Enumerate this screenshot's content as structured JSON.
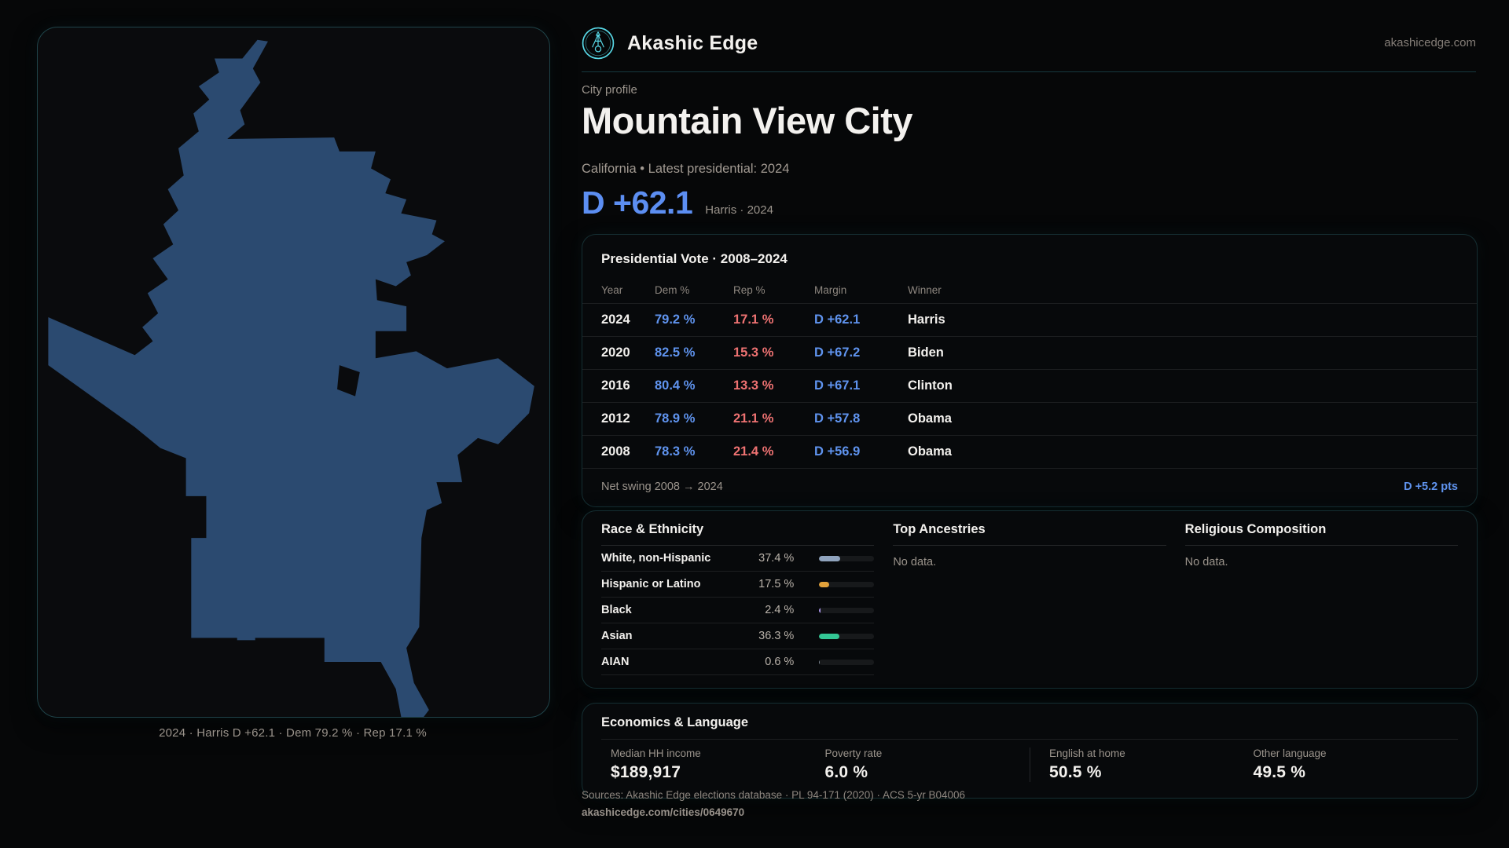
{
  "brand": {
    "name": "Akashic Edge",
    "domain": "akashicedge.com",
    "logo_icon": "circular-sigil-icon",
    "accent_teal": "#58d8e6"
  },
  "hero": {
    "eyebrow": "City profile",
    "title": "Mountain View City",
    "subtitle": "California • Latest presidential: 2024",
    "margin_value": "D +62.1",
    "margin_note": "Harris · 2024",
    "margin_color": "#5c8ef2"
  },
  "map": {
    "caption": "2024 · Harris D +62.1 · Dem 79.2 % · Rep 17.1 %",
    "shape_fill": "#2b4a70"
  },
  "elections": {
    "title": "Presidential Vote · 2008–2024",
    "columns": [
      "Year",
      "Dem %",
      "Rep %",
      "Margin",
      "Winner"
    ],
    "rows": [
      {
        "year": "2024",
        "dem": "79.2 %",
        "rep": "17.1 %",
        "margin": "D +62.1",
        "winner": "Harris"
      },
      {
        "year": "2020",
        "dem": "82.5 %",
        "rep": "15.3 %",
        "margin": "D +67.2",
        "winner": "Biden"
      },
      {
        "year": "2016",
        "dem": "80.4 %",
        "rep": "13.3 %",
        "margin": "D +67.1",
        "winner": "Clinton"
      },
      {
        "year": "2012",
        "dem": "78.9 %",
        "rep": "21.1 %",
        "margin": "D +57.8",
        "winner": "Obama"
      },
      {
        "year": "2008",
        "dem": "78.3 %",
        "rep": "21.4 %",
        "margin": "D +56.9",
        "winner": "Obama"
      }
    ],
    "net_swing_label": "Net swing 2008 → 2024",
    "net_swing_value": "D +5.2 pts",
    "dem_color": "#5f93ee",
    "rep_color": "#ee7272"
  },
  "race": {
    "title": "Race & Ethnicity",
    "rows": [
      {
        "label": "White, non-Hispanic",
        "value": "37.4 %",
        "pct": 37.4,
        "color": "#8fa3bd"
      },
      {
        "label": "Hispanic or Latino",
        "value": "17.5 %",
        "pct": 17.5,
        "color": "#e2a23b"
      },
      {
        "label": "Black",
        "value": "2.4 %",
        "pct": 2.4,
        "color": "#a995e8"
      },
      {
        "label": "Asian",
        "value": "36.3 %",
        "pct": 36.3,
        "color": "#33c795"
      },
      {
        "label": "AIAN",
        "value": "0.6 %",
        "pct": 0.6,
        "color": "#7c8792"
      }
    ]
  },
  "ancestries": {
    "title": "Top Ancestries",
    "empty": "No data."
  },
  "religion": {
    "title": "Religious Composition",
    "empty": "No data."
  },
  "economics": {
    "title": "Economics & Language",
    "stats": [
      {
        "label": "Median HH income",
        "value": "$189,917"
      },
      {
        "label": "Poverty rate",
        "value": "6.0 %"
      },
      {
        "label": "English at home",
        "value": "50.5 %"
      },
      {
        "label": "Other language",
        "value": "49.5 %"
      }
    ]
  },
  "footer": {
    "sources": "Sources: Akashic Edge elections database · PL 94-171 (2020) · ACS 5-yr B04006",
    "permalink": "akashicedge.com/cities/0649670"
  }
}
